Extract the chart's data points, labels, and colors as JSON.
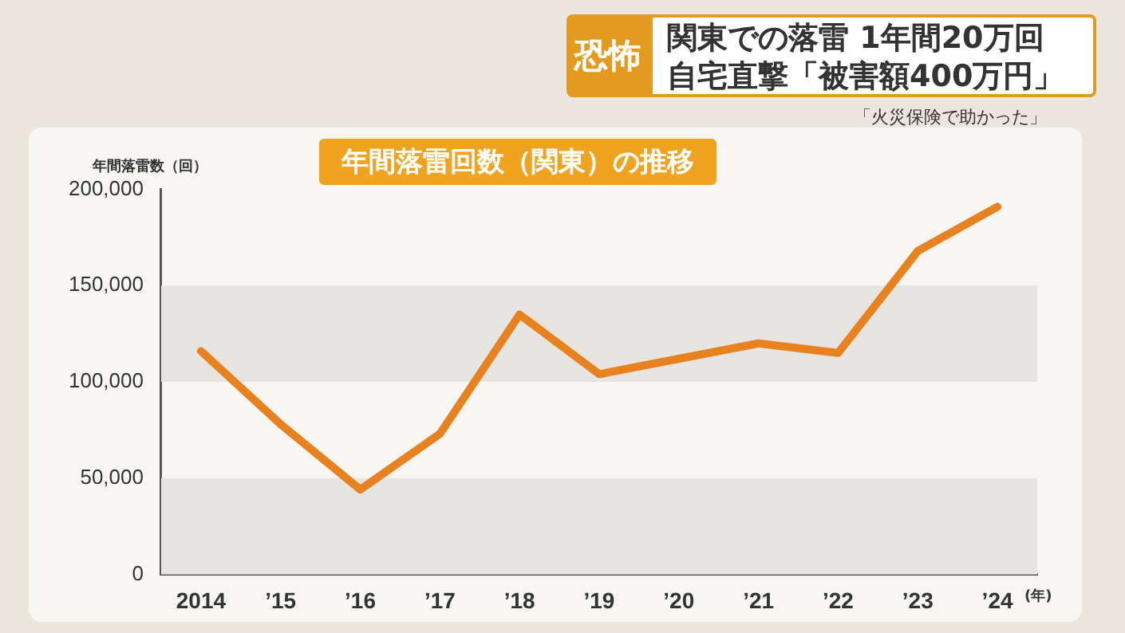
{
  "chart_data": {
    "type": "line",
    "title": "年間落雷回数（関東）の推移",
    "ylabel": "年間落雷数（回）",
    "xlabel": "(年)",
    "annotations": [
      "恐怖",
      "関東での落雷 1年間20万回",
      "自宅直撃「被害額400万円」",
      "「火災保険で助かった」"
    ],
    "categories": [
      "2014",
      "’15",
      "’16",
      "’17",
      "’18",
      "’19",
      "’20",
      "’21",
      "’22",
      "’23",
      "’24"
    ],
    "series": [
      {
        "color": "#e8821e",
        "values": [
          116000,
          78000,
          44000,
          73000,
          135000,
          104000,
          112000,
          120000,
          115000,
          168000,
          191000
        ]
      }
    ],
    "ylim": [
      0,
      200000
    ],
    "yticks": [
      0,
      {
        "value": 50000,
        "label": "50,000"
      },
      {
        "value": 100000,
        "label": "100,000"
      },
      {
        "value": 150000,
        "label": "150,000"
      },
      {
        "value": 200000,
        "label": "200,000"
      }
    ],
    "bands": [
      {
        "axis": "y",
        "from": 0,
        "to": 50000,
        "color": "#e7e5e1"
      },
      {
        "axis": "y",
        "from": 100000,
        "to": 150000,
        "color": "#e7e5e1"
      }
    ],
    "grid": false,
    "legend": false,
    "marker": "none",
    "line_style": "solid"
  }
}
